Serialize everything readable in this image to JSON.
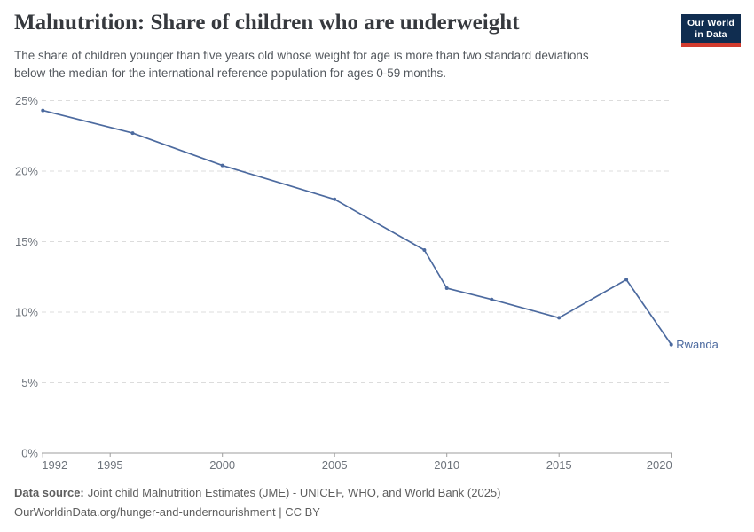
{
  "header": {
    "title": "Malnutrition: Share of children who are underweight",
    "subtitle_lines": [
      "The share of children younger than five years old whose weight for age is more than two standard deviations",
      "below the median for the international reference population for ages 0-59 months."
    ],
    "logo": {
      "line1": "Our World",
      "line2": "in Data",
      "bg_color": "#102d50",
      "stripe_color": "#d23b2e"
    }
  },
  "chart_data": {
    "type": "line",
    "title": "Malnutrition: Share of children who are underweight",
    "xlabel": "",
    "ylabel": "",
    "x_domain": [
      1992,
      2020
    ],
    "y_domain": [
      0,
      25
    ],
    "x_ticks": [
      1992,
      1995,
      2000,
      2005,
      2010,
      2015,
      2020
    ],
    "y_ticks": [
      0,
      5,
      10,
      15,
      20,
      25
    ],
    "y_tick_suffix": "%",
    "grid": "horizontal-dashed",
    "legend_position": "end-of-line-label",
    "colors": {
      "line": "#4c6a9f",
      "gridline": "#dcdcdc",
      "axis": "#9e9e9e",
      "tick_text": "#6d737b"
    },
    "series": [
      {
        "name": "Rwanda",
        "color": "#4c6a9f",
        "points": [
          {
            "year": 1992,
            "value": 24.3
          },
          {
            "year": 1996,
            "value": 22.7
          },
          {
            "year": 2000,
            "value": 20.4
          },
          {
            "year": 2005,
            "value": 18.0
          },
          {
            "year": 2009,
            "value": 14.4
          },
          {
            "year": 2010,
            "value": 11.7
          },
          {
            "year": 2012,
            "value": 10.9
          },
          {
            "year": 2015,
            "value": 9.6
          },
          {
            "year": 2018,
            "value": 12.3
          },
          {
            "year": 2020,
            "value": 7.7
          }
        ]
      }
    ],
    "end_label": "Rwanda"
  },
  "footer": {
    "datasource_label": "Data source:",
    "datasource_text": "Joint child Malnutrition Estimates (JME) - UNICEF, WHO, and World Bank (2025)",
    "citation": "OurWorldinData.org/hunger-and-undernourishment | CC BY"
  }
}
